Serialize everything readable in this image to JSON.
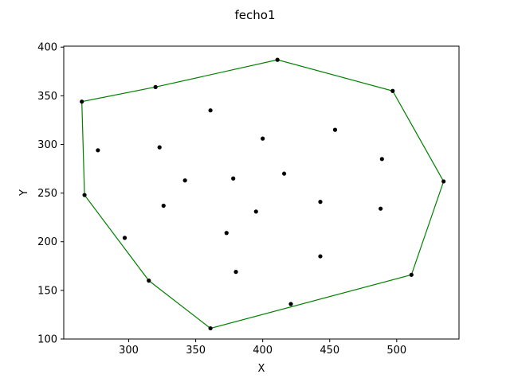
{
  "chart_data": {
    "type": "scatter",
    "title": "fecho1",
    "xlabel": "X",
    "ylabel": "Y",
    "xlim": [
      251.5,
      546.5
    ],
    "ylim": [
      100,
      401
    ],
    "grid": false,
    "xticks": [
      300,
      350,
      400,
      450,
      500
    ],
    "yticks": [
      100,
      150,
      200,
      250,
      300,
      350,
      400
    ],
    "points": [
      [
        411,
        387
      ],
      [
        497,
        355
      ],
      [
        535,
        262
      ],
      [
        511,
        166
      ],
      [
        421,
        136
      ],
      [
        361,
        111
      ],
      [
        315,
        160
      ],
      [
        267,
        248
      ],
      [
        265,
        344
      ],
      [
        320,
        359
      ],
      [
        361,
        335
      ],
      [
        454,
        315
      ],
      [
        400,
        306
      ],
      [
        489,
        285
      ],
      [
        277,
        294
      ],
      [
        323,
        297
      ],
      [
        416,
        270
      ],
      [
        342,
        263
      ],
      [
        378,
        265
      ],
      [
        443,
        241
      ],
      [
        326,
        237
      ],
      [
        488,
        234
      ],
      [
        395,
        231
      ],
      [
        297,
        204
      ],
      [
        373,
        209
      ],
      [
        443,
        185
      ],
      [
        380,
        169
      ]
    ],
    "hull": [
      [
        265,
        344
      ],
      [
        320,
        359
      ],
      [
        411,
        387
      ],
      [
        497,
        355
      ],
      [
        535,
        262
      ],
      [
        511,
        166
      ],
      [
        361,
        111
      ],
      [
        315,
        160
      ],
      [
        267,
        248
      ],
      [
        265,
        344
      ]
    ],
    "hull_color": "#008000",
    "point_color": "#000000"
  }
}
